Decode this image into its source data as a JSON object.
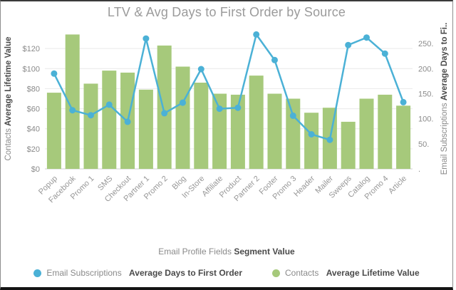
{
  "chart_data": {
    "type": "combo",
    "title": "LTV & Avg Days to First Order by Source",
    "categories": [
      "Popup",
      "Facebook",
      "Promo 1",
      "SMS",
      "Checkout",
      "Partner 1",
      "Promo 2",
      "Blog",
      "In-Store",
      "Affiliate",
      "Product",
      "Partner 2",
      "Footer",
      "Promo 3",
      "Header",
      "Mailer",
      "Sweeps",
      "Catalog",
      "Promo 4",
      "Article"
    ],
    "series": [
      {
        "name": "Email Subscriptions Average Days to First Order",
        "type": "line",
        "axis": "right",
        "color": "#4bb1d6",
        "values": [
          190,
          117,
          107,
          128,
          94,
          260,
          111,
          132,
          199,
          120,
          122,
          268,
          217,
          106,
          69,
          58,
          247,
          262,
          230,
          133
        ]
      },
      {
        "name": "Contacts Average Lifetime Value",
        "type": "bar",
        "axis": "left",
        "color": "#a6c97b",
        "values": [
          76,
          134,
          85,
          98,
          96,
          79,
          123,
          102,
          86,
          75,
          74,
          93,
          75,
          70,
          56,
          61,
          47,
          70,
          74,
          63
        ]
      }
    ],
    "left_axis": {
      "title_regular": "Contacts",
      "title_bold": "Average Lifetime Value",
      "tick_values": [
        0,
        20,
        40,
        60,
        80,
        100,
        120
      ],
      "tick_labels": [
        "$0",
        "$20",
        "$40",
        "$60",
        "$80",
        "$100",
        "$120"
      ],
      "max": 140
    },
    "right_axis": {
      "title_regular": "Email Subscriptions",
      "title_bold": "Average Days to Fi..",
      "tick_values": [
        0,
        50,
        100,
        150,
        200,
        250
      ],
      "tick_labels": [
        ".",
        "50.",
        "100.",
        "150.",
        "200.",
        "250."
      ],
      "max": 280
    },
    "x_axis": {
      "title_regular": "Email Profile Fields",
      "title_bold": "Segment Value"
    },
    "grid": "horizontal",
    "legend_position": "bottom"
  },
  "legend": [
    {
      "regular": "Email Subscriptions ",
      "bold": "Average Days to First Order",
      "color": "#4bb1d6"
    },
    {
      "regular": "Contacts ",
      "bold": "Average Lifetime Value",
      "color": "#a6c97b"
    }
  ]
}
